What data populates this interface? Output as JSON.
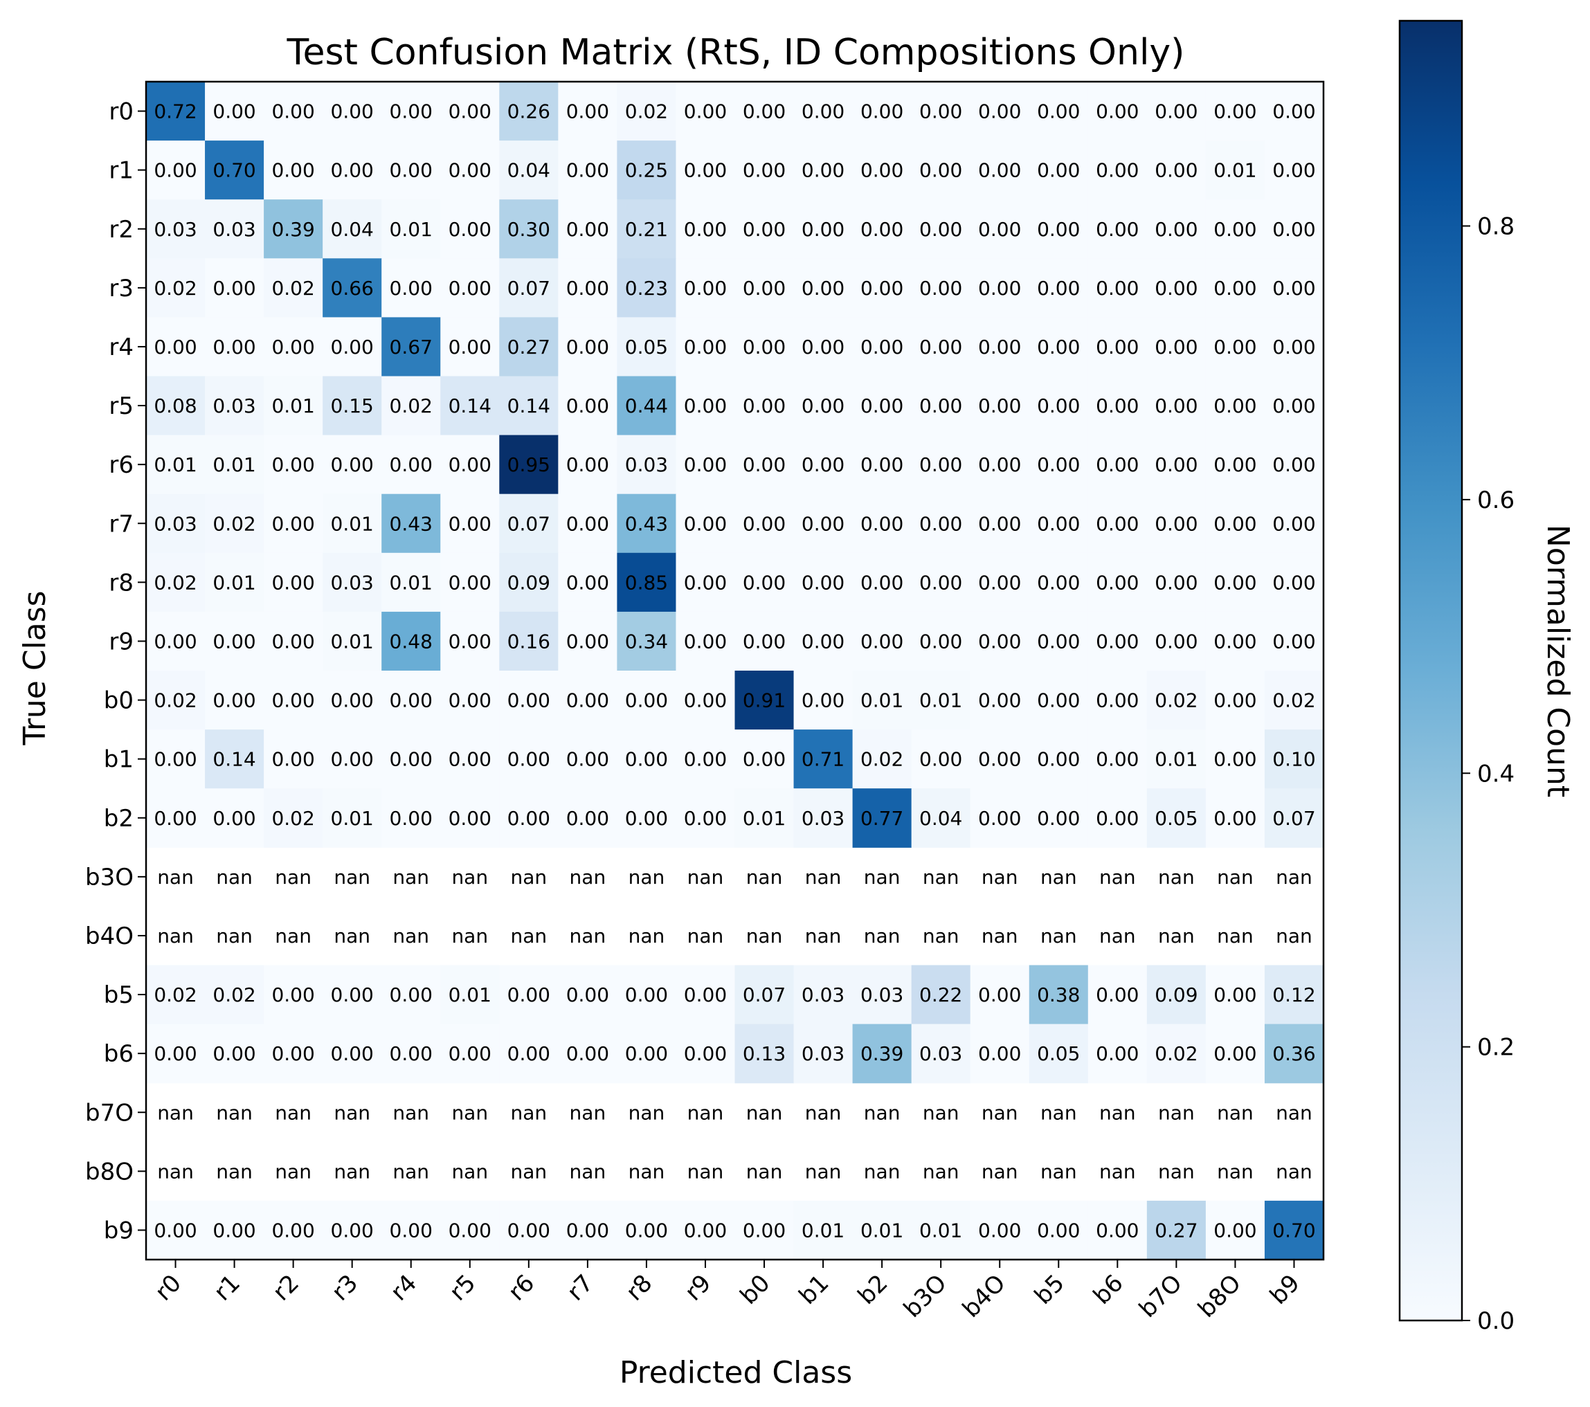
{
  "chart_data": {
    "type": "heatmap",
    "title": "Test Confusion Matrix (RtS, ID Compositions Only)",
    "xlabel": "Predicted Class",
    "ylabel": "True Class",
    "colorbar_label": "Normalized Count",
    "colormap": "Blues",
    "colors": {
      "low": "#f7fbff",
      "high": "#08306b"
    },
    "vmin": 0.0,
    "vmax": 0.95,
    "colorbar_ticks": [
      "0.0",
      "0.2",
      "0.4",
      "0.6",
      "0.8"
    ],
    "colorbar_tick_values": [
      0.0,
      0.2,
      0.4,
      0.6,
      0.8
    ],
    "x_categories": [
      "r0",
      "r1",
      "r2",
      "r3",
      "r4",
      "r5",
      "r6",
      "r7",
      "r8",
      "r9",
      "b0",
      "b1",
      "b2",
      "b3O",
      "b4O",
      "b5",
      "b6",
      "b7O",
      "b8O",
      "b9"
    ],
    "y_categories": [
      "r0",
      "r1",
      "r2",
      "r3",
      "r4",
      "r5",
      "r6",
      "r7",
      "r8",
      "r9",
      "b0",
      "b1",
      "b2",
      "b3O",
      "b4O",
      "b5",
      "b6",
      "b7O",
      "b8O",
      "b9"
    ],
    "nan_label": "nan",
    "matrix": [
      [
        0.72,
        0.0,
        0.0,
        0.0,
        0.0,
        0.0,
        0.26,
        0.0,
        0.02,
        0.0,
        0.0,
        0.0,
        0.0,
        0.0,
        0.0,
        0.0,
        0.0,
        0.0,
        0.0,
        0.0
      ],
      [
        0.0,
        0.7,
        0.0,
        0.0,
        0.0,
        0.0,
        0.04,
        0.0,
        0.25,
        0.0,
        0.0,
        0.0,
        0.0,
        0.0,
        0.0,
        0.0,
        0.0,
        0.0,
        0.01,
        0.0
      ],
      [
        0.03,
        0.03,
        0.39,
        0.04,
        0.01,
        0.0,
        0.3,
        0.0,
        0.21,
        0.0,
        0.0,
        0.0,
        0.0,
        0.0,
        0.0,
        0.0,
        0.0,
        0.0,
        0.0,
        0.0
      ],
      [
        0.02,
        0.0,
        0.02,
        0.66,
        0.0,
        0.0,
        0.07,
        0.0,
        0.23,
        0.0,
        0.0,
        0.0,
        0.0,
        0.0,
        0.0,
        0.0,
        0.0,
        0.0,
        0.0,
        0.0
      ],
      [
        0.0,
        0.0,
        0.0,
        0.0,
        0.67,
        0.0,
        0.27,
        0.0,
        0.05,
        0.0,
        0.0,
        0.0,
        0.0,
        0.0,
        0.0,
        0.0,
        0.0,
        0.0,
        0.0,
        0.0
      ],
      [
        0.08,
        0.03,
        0.01,
        0.15,
        0.02,
        0.14,
        0.14,
        0.0,
        0.44,
        0.0,
        0.0,
        0.0,
        0.0,
        0.0,
        0.0,
        0.0,
        0.0,
        0.0,
        0.0,
        0.0
      ],
      [
        0.01,
        0.01,
        0.0,
        0.0,
        0.0,
        0.0,
        0.95,
        0.0,
        0.03,
        0.0,
        0.0,
        0.0,
        0.0,
        0.0,
        0.0,
        0.0,
        0.0,
        0.0,
        0.0,
        0.0
      ],
      [
        0.03,
        0.02,
        0.0,
        0.01,
        0.43,
        0.0,
        0.07,
        0.0,
        0.43,
        0.0,
        0.0,
        0.0,
        0.0,
        0.0,
        0.0,
        0.0,
        0.0,
        0.0,
        0.0,
        0.0
      ],
      [
        0.02,
        0.01,
        0.0,
        0.03,
        0.01,
        0.0,
        0.09,
        0.0,
        0.85,
        0.0,
        0.0,
        0.0,
        0.0,
        0.0,
        0.0,
        0.0,
        0.0,
        0.0,
        0.0,
        0.0
      ],
      [
        0.0,
        0.0,
        0.0,
        0.01,
        0.48,
        0.0,
        0.16,
        0.0,
        0.34,
        0.0,
        0.0,
        0.0,
        0.0,
        0.0,
        0.0,
        0.0,
        0.0,
        0.0,
        0.0,
        0.0
      ],
      [
        0.02,
        0.0,
        0.0,
        0.0,
        0.0,
        0.0,
        0.0,
        0.0,
        0.0,
        0.0,
        0.91,
        0.0,
        0.01,
        0.01,
        0.0,
        0.0,
        0.0,
        0.02,
        0.0,
        0.02
      ],
      [
        0.0,
        0.14,
        0.0,
        0.0,
        0.0,
        0.0,
        0.0,
        0.0,
        0.0,
        0.0,
        0.0,
        0.71,
        0.02,
        0.0,
        0.0,
        0.0,
        0.0,
        0.01,
        0.0,
        0.1
      ],
      [
        0.0,
        0.0,
        0.02,
        0.01,
        0.0,
        0.0,
        0.0,
        0.0,
        0.0,
        0.0,
        0.01,
        0.03,
        0.77,
        0.04,
        0.0,
        0.0,
        0.0,
        0.05,
        0.0,
        0.07
      ],
      [
        null,
        null,
        null,
        null,
        null,
        null,
        null,
        null,
        null,
        null,
        null,
        null,
        null,
        null,
        null,
        null,
        null,
        null,
        null,
        null
      ],
      [
        null,
        null,
        null,
        null,
        null,
        null,
        null,
        null,
        null,
        null,
        null,
        null,
        null,
        null,
        null,
        null,
        null,
        null,
        null,
        null
      ],
      [
        0.02,
        0.02,
        0.0,
        0.0,
        0.0,
        0.01,
        0.0,
        0.0,
        0.0,
        0.0,
        0.07,
        0.03,
        0.03,
        0.22,
        0.0,
        0.38,
        0.0,
        0.09,
        0.0,
        0.12
      ],
      [
        0.0,
        0.0,
        0.0,
        0.0,
        0.0,
        0.0,
        0.0,
        0.0,
        0.0,
        0.0,
        0.13,
        0.03,
        0.39,
        0.03,
        0.0,
        0.05,
        0.0,
        0.02,
        0.0,
        0.36
      ],
      [
        null,
        null,
        null,
        null,
        null,
        null,
        null,
        null,
        null,
        null,
        null,
        null,
        null,
        null,
        null,
        null,
        null,
        null,
        null,
        null
      ],
      [
        null,
        null,
        null,
        null,
        null,
        null,
        null,
        null,
        null,
        null,
        null,
        null,
        null,
        null,
        null,
        null,
        null,
        null,
        null,
        null
      ],
      [
        0.0,
        0.0,
        0.0,
        0.0,
        0.0,
        0.0,
        0.0,
        0.0,
        0.0,
        0.0,
        0.0,
        0.01,
        0.01,
        0.01,
        0.0,
        0.0,
        0.0,
        0.27,
        0.0,
        0.7
      ]
    ]
  }
}
